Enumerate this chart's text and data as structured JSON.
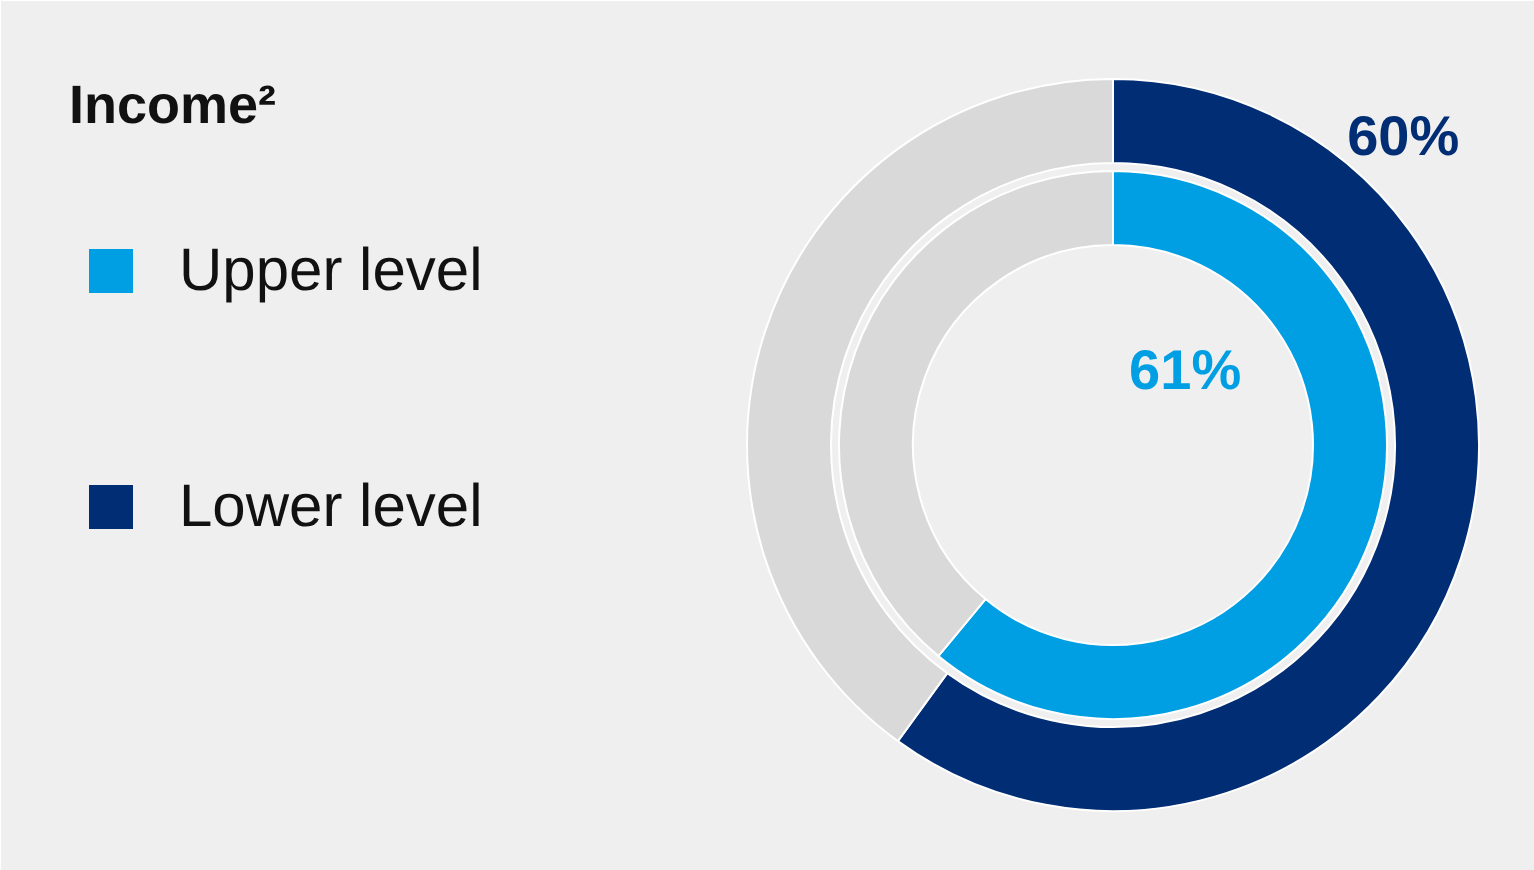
{
  "chart_data": {
    "type": "donut",
    "title": "Income²",
    "legend": "left",
    "categories": [
      null,
      null
    ],
    "series": [
      {
        "name": "Upper level",
        "colors": [
          "#009fe3",
          "#d9d9d9"
        ],
        "values": [
          61,
          39
        ],
        "value_labels": [
          "61%",
          null
        ]
      },
      {
        "name": "Lower level",
        "colors": [
          "#002d74",
          "#d9d9d9"
        ],
        "values": [
          60,
          40
        ],
        "value_labels": [
          "60%",
          null
        ]
      }
    ]
  }
}
